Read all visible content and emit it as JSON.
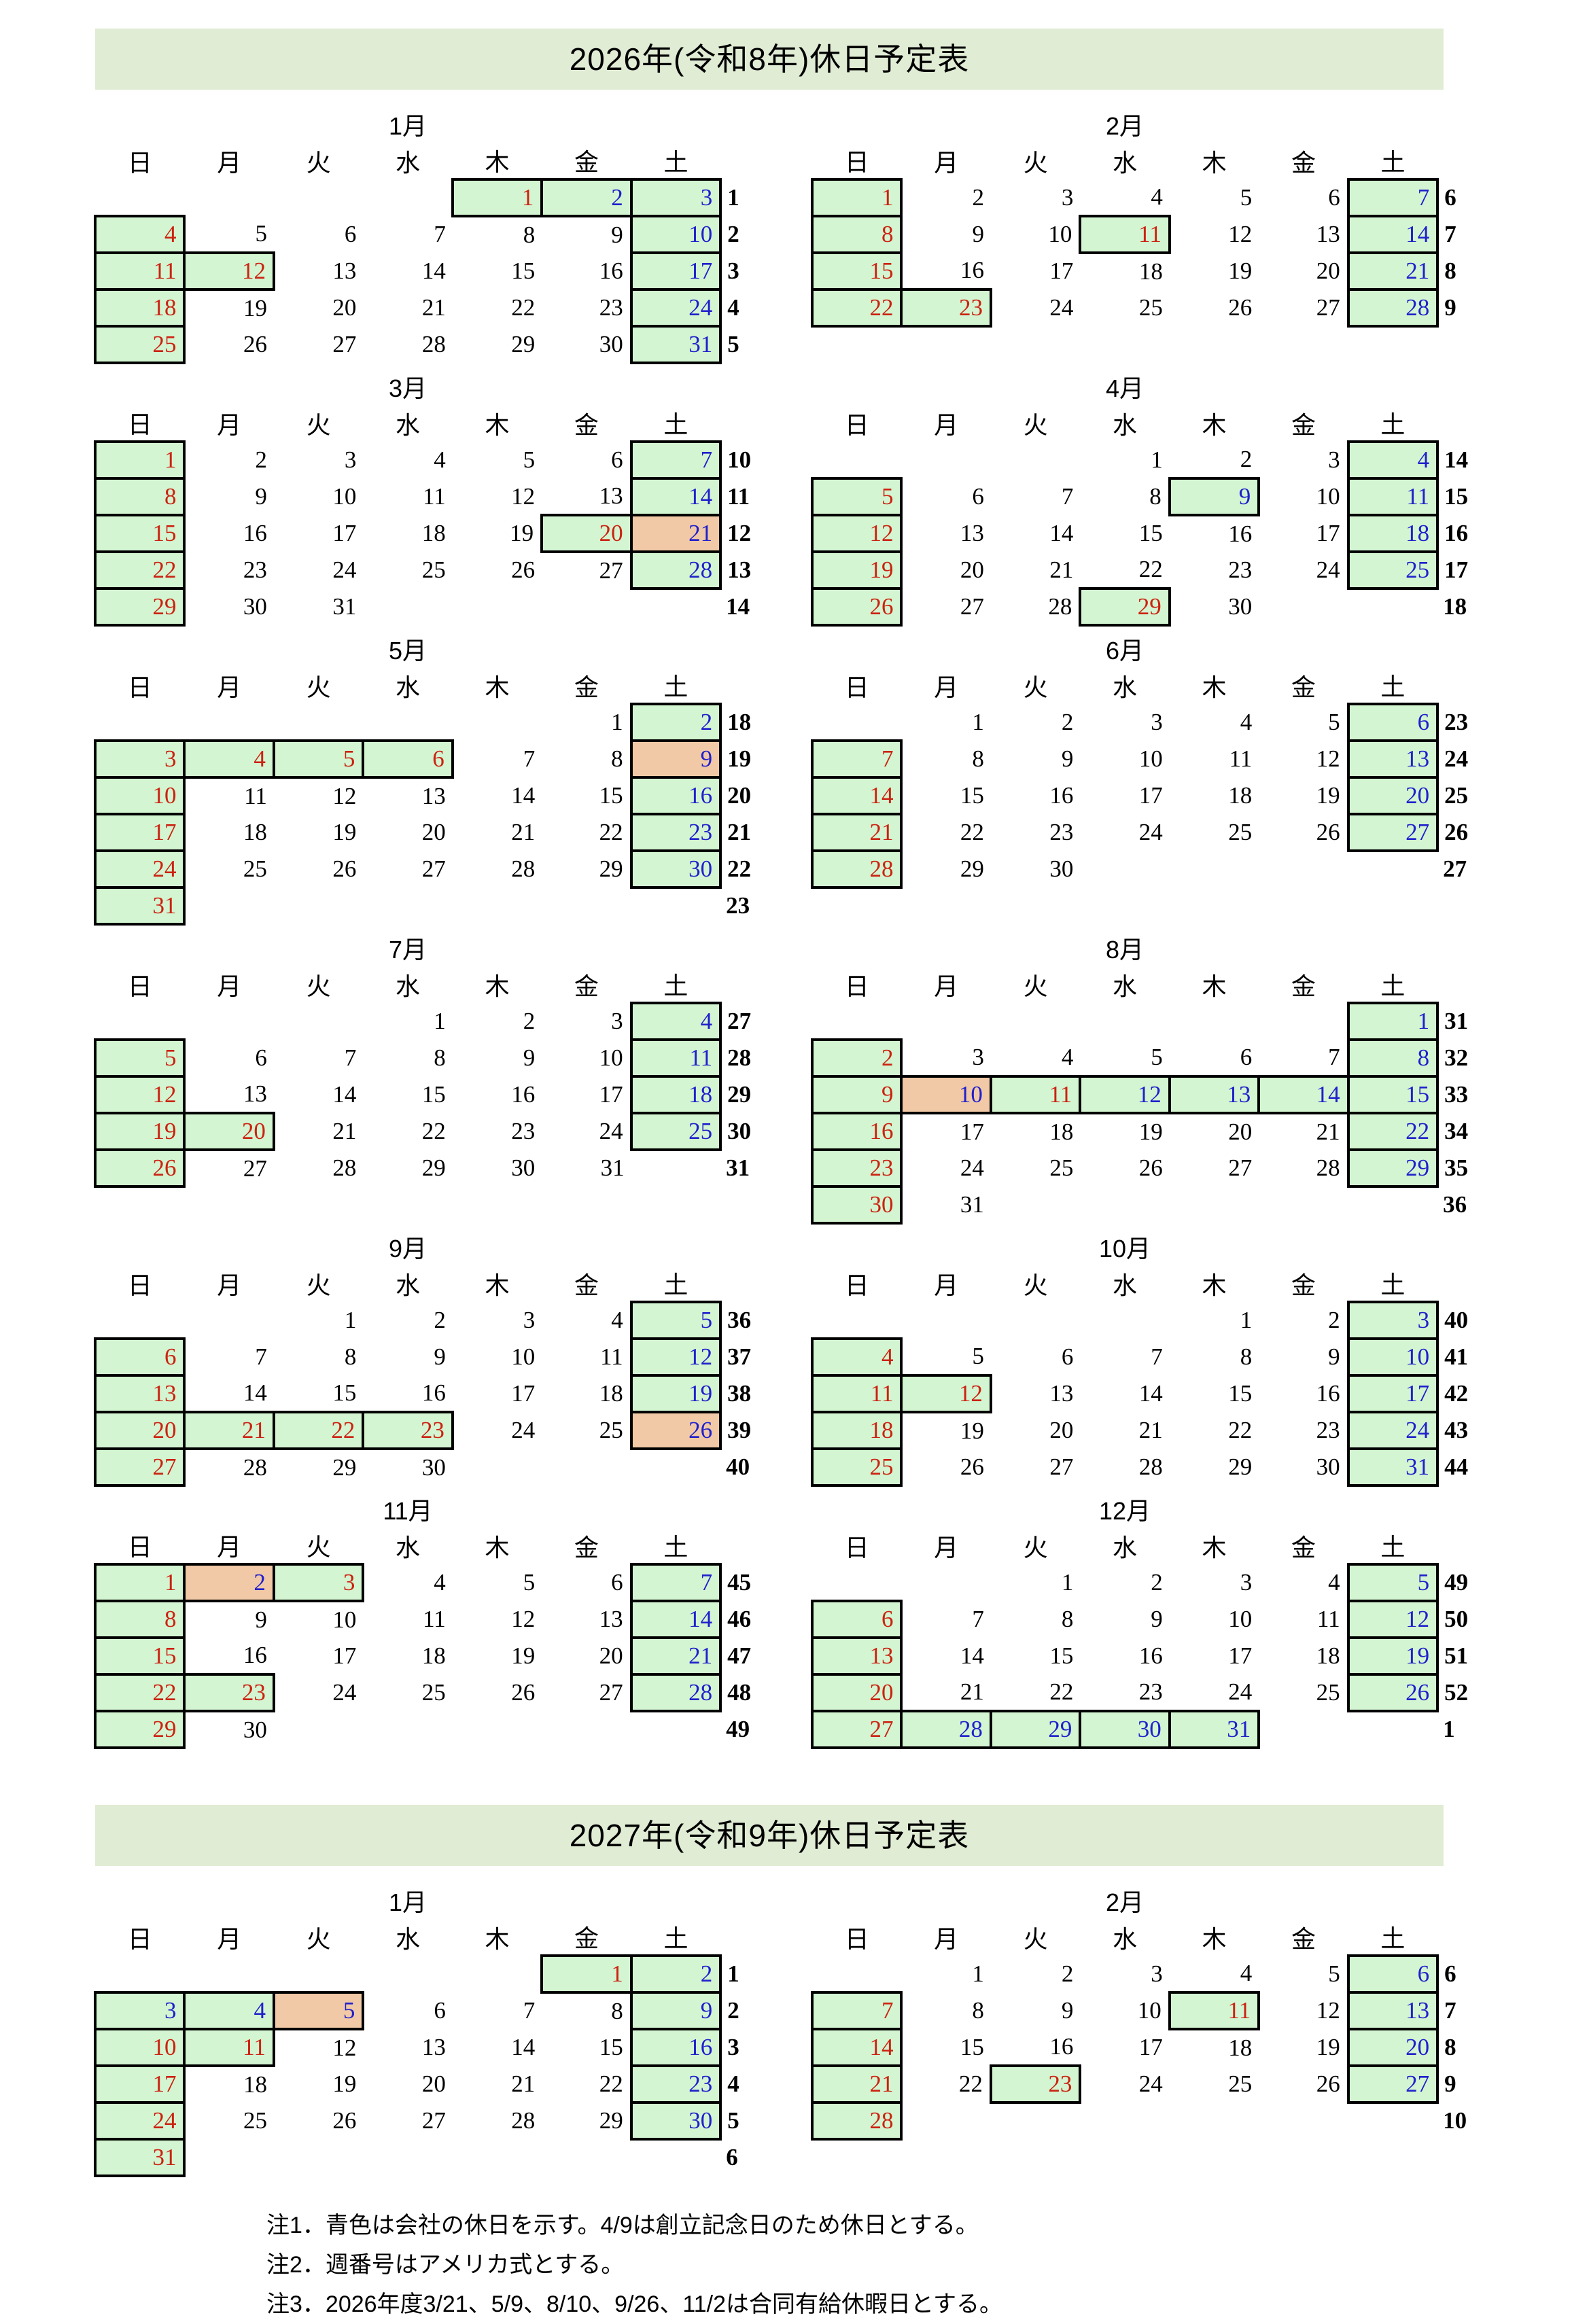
{
  "colors": {
    "holiday_green": "#d3f5d1",
    "joint_leave_orange": "#f1c9a6",
    "title_bar_green": "#e0ecd4",
    "sunday_holiday_red": "#cc2211",
    "company_holiday_blue": "#2020cc",
    "text_black": "#000000"
  },
  "cell_style_codes": {
    "rg": "red-text-on-green-holiday",
    "bg": "blue-text-on-green-company-holiday",
    "bo": "blue-text-on-orange-joint-paid-leave",
    "plain": "black-text-no-fill"
  },
  "day_headers": [
    "日",
    "月",
    "火",
    "水",
    "木",
    "金",
    "土"
  ],
  "sections": [
    {
      "title": "2026年(令和8年)休日予定表",
      "year": "2026",
      "months": [
        {
          "label": "1月",
          "weeks": [
            {
              "w": "1",
              "days": [
                "",
                "",
                "",
                "",
                "1:rg",
                "2:bg",
                "3:bg"
              ]
            },
            {
              "w": "2",
              "days": [
                "4:rg",
                "5",
                "6",
                "7",
                "8",
                "9",
                "10:bg"
              ]
            },
            {
              "w": "3",
              "days": [
                "11:rg",
                "12:rg",
                "13",
                "14",
                "15",
                "16",
                "17:bg"
              ]
            },
            {
              "w": "4",
              "days": [
                "18:rg",
                "19",
                "20",
                "21",
                "22",
                "23",
                "24:bg"
              ]
            },
            {
              "w": "5",
              "days": [
                "25:rg",
                "26",
                "27",
                "28",
                "29",
                "30",
                "31:bg"
              ]
            }
          ]
        },
        {
          "label": "2月",
          "weeks": [
            {
              "w": "6",
              "days": [
                "1:rg",
                "2",
                "3",
                "4",
                "5",
                "6",
                "7:bg"
              ]
            },
            {
              "w": "7",
              "days": [
                "8:rg",
                "9",
                "10",
                "11:rg",
                "12",
                "13",
                "14:bg"
              ]
            },
            {
              "w": "8",
              "days": [
                "15:rg",
                "16",
                "17",
                "18",
                "19",
                "20",
                "21:bg"
              ]
            },
            {
              "w": "9",
              "days": [
                "22:rg",
                "23:rg",
                "24",
                "25",
                "26",
                "27",
                "28:bg"
              ]
            }
          ]
        },
        {
          "label": "3月",
          "weeks": [
            {
              "w": "10",
              "days": [
                "1:rg",
                "2",
                "3",
                "4",
                "5",
                "6",
                "7:bg"
              ]
            },
            {
              "w": "11",
              "days": [
                "8:rg",
                "9",
                "10",
                "11",
                "12",
                "13",
                "14:bg"
              ]
            },
            {
              "w": "12",
              "days": [
                "15:rg",
                "16",
                "17",
                "18",
                "19",
                "20:rg",
                "21:bo"
              ]
            },
            {
              "w": "13",
              "days": [
                "22:rg",
                "23",
                "24",
                "25",
                "26",
                "27",
                "28:bg"
              ]
            },
            {
              "w": "14",
              "days": [
                "29:rg",
                "30",
                "31",
                "",
                "",
                "",
                ""
              ]
            }
          ]
        },
        {
          "label": "4月",
          "weeks": [
            {
              "w": "14",
              "days": [
                "",
                "",
                "",
                "1",
                "2",
                "3",
                "4:bg"
              ]
            },
            {
              "w": "15",
              "days": [
                "5:rg",
                "6",
                "7",
                "8",
                "9:bg",
                "10",
                "11:bg"
              ]
            },
            {
              "w": "16",
              "days": [
                "12:rg",
                "13",
                "14",
                "15",
                "16",
                "17",
                "18:bg"
              ]
            },
            {
              "w": "17",
              "days": [
                "19:rg",
                "20",
                "21",
                "22",
                "23",
                "24",
                "25:bg"
              ]
            },
            {
              "w": "18",
              "days": [
                "26:rg",
                "27",
                "28",
                "29:rg",
                "30",
                "",
                ""
              ]
            }
          ]
        },
        {
          "label": "5月",
          "weeks": [
            {
              "w": "18",
              "days": [
                "",
                "",
                "",
                "",
                "",
                "1",
                "2:bg"
              ]
            },
            {
              "w": "19",
              "days": [
                "3:rg",
                "4:rg",
                "5:rg",
                "6:rg",
                "7",
                "8",
                "9:bo"
              ]
            },
            {
              "w": "20",
              "days": [
                "10:rg",
                "11",
                "12",
                "13",
                "14",
                "15",
                "16:bg"
              ]
            },
            {
              "w": "21",
              "days": [
                "17:rg",
                "18",
                "19",
                "20",
                "21",
                "22",
                "23:bg"
              ]
            },
            {
              "w": "22",
              "days": [
                "24:rg",
                "25",
                "26",
                "27",
                "28",
                "29",
                "30:bg"
              ]
            },
            {
              "w": "23",
              "days": [
                "31:rg",
                "",
                "",
                "",
                "",
                "",
                ""
              ]
            }
          ]
        },
        {
          "label": "6月",
          "weeks": [
            {
              "w": "23",
              "days": [
                "",
                "1",
                "2",
                "3",
                "4",
                "5",
                "6:bg"
              ]
            },
            {
              "w": "24",
              "days": [
                "7:rg",
                "8",
                "9",
                "10",
                "11",
                "12",
                "13:bg"
              ]
            },
            {
              "w": "25",
              "days": [
                "14:rg",
                "15",
                "16",
                "17",
                "18",
                "19",
                "20:bg"
              ]
            },
            {
              "w": "26",
              "days": [
                "21:rg",
                "22",
                "23",
                "24",
                "25",
                "26",
                "27:bg"
              ]
            },
            {
              "w": "27",
              "days": [
                "28:rg",
                "29",
                "30",
                "",
                "",
                "",
                ""
              ]
            }
          ]
        },
        {
          "label": "7月",
          "weeks": [
            {
              "w": "27",
              "days": [
                "",
                "",
                "",
                "1",
                "2",
                "3",
                "4:bg"
              ]
            },
            {
              "w": "28",
              "days": [
                "5:rg",
                "6",
                "7",
                "8",
                "9",
                "10",
                "11:bg"
              ]
            },
            {
              "w": "29",
              "days": [
                "12:rg",
                "13",
                "14",
                "15",
                "16",
                "17",
                "18:bg"
              ]
            },
            {
              "w": "30",
              "days": [
                "19:rg",
                "20:rg",
                "21",
                "22",
                "23",
                "24",
                "25:bg"
              ]
            },
            {
              "w": "31",
              "days": [
                "26:rg",
                "27",
                "28",
                "29",
                "30",
                "31",
                ""
              ]
            }
          ]
        },
        {
          "label": "8月",
          "weeks": [
            {
              "w": "31",
              "days": [
                "",
                "",
                "",
                "",
                "",
                "",
                "1:bg"
              ]
            },
            {
              "w": "32",
              "days": [
                "2:rg",
                "3",
                "4",
                "5",
                "6",
                "7",
                "8:bg"
              ]
            },
            {
              "w": "33",
              "days": [
                "9:rg",
                "10:bo",
                "11:rg",
                "12:bg",
                "13:bg",
                "14:bg",
                "15:bg"
              ]
            },
            {
              "w": "34",
              "days": [
                "16:rg",
                "17",
                "18",
                "19",
                "20",
                "21",
                "22:bg"
              ]
            },
            {
              "w": "35",
              "days": [
                "23:rg",
                "24",
                "25",
                "26",
                "27",
                "28",
                "29:bg"
              ]
            },
            {
              "w": "36",
              "days": [
                "30:rg",
                "31",
                "",
                "",
                "",
                "",
                ""
              ]
            }
          ]
        },
        {
          "label": "9月",
          "weeks": [
            {
              "w": "36",
              "days": [
                "",
                "",
                "1",
                "2",
                "3",
                "4",
                "5:bg"
              ]
            },
            {
              "w": "37",
              "days": [
                "6:rg",
                "7",
                "8",
                "9",
                "10",
                "11",
                "12:bg"
              ]
            },
            {
              "w": "38",
              "days": [
                "13:rg",
                "14",
                "15",
                "16",
                "17",
                "18",
                "19:bg"
              ]
            },
            {
              "w": "39",
              "days": [
                "20:rg",
                "21:rg",
                "22:rg",
                "23:rg",
                "24",
                "25",
                "26:bo"
              ]
            },
            {
              "w": "40",
              "days": [
                "27:rg",
                "28",
                "29",
                "30",
                "",
                "",
                ""
              ]
            }
          ]
        },
        {
          "label": "10月",
          "weeks": [
            {
              "w": "40",
              "days": [
                "",
                "",
                "",
                "",
                "1",
                "2",
                "3:bg"
              ]
            },
            {
              "w": "41",
              "days": [
                "4:rg",
                "5",
                "6",
                "7",
                "8",
                "9",
                "10:bg"
              ]
            },
            {
              "w": "42",
              "days": [
                "11:rg",
                "12:rg",
                "13",
                "14",
                "15",
                "16",
                "17:bg"
              ]
            },
            {
              "w": "43",
              "days": [
                "18:rg",
                "19",
                "20",
                "21",
                "22",
                "23",
                "24:bg"
              ]
            },
            {
              "w": "44",
              "days": [
                "25:rg",
                "26",
                "27",
                "28",
                "29",
                "30",
                "31:bg"
              ]
            }
          ]
        },
        {
          "label": "11月",
          "weeks": [
            {
              "w": "45",
              "days": [
                "1:rg",
                "2:bo",
                "3:rg",
                "4",
                "5",
                "6",
                "7:bg"
              ]
            },
            {
              "w": "46",
              "days": [
                "8:rg",
                "9",
                "10",
                "11",
                "12",
                "13",
                "14:bg"
              ]
            },
            {
              "w": "47",
              "days": [
                "15:rg",
                "16",
                "17",
                "18",
                "19",
                "20",
                "21:bg"
              ]
            },
            {
              "w": "48",
              "days": [
                "22:rg",
                "23:rg",
                "24",
                "25",
                "26",
                "27",
                "28:bg"
              ]
            },
            {
              "w": "49",
              "days": [
                "29:rg",
                "30",
                "",
                "",
                "",
                "",
                ""
              ]
            }
          ]
        },
        {
          "label": "12月",
          "weeks": [
            {
              "w": "49",
              "days": [
                "",
                "",
                "1",
                "2",
                "3",
                "4",
                "5:bg"
              ]
            },
            {
              "w": "50",
              "days": [
                "6:rg",
                "7",
                "8",
                "9",
                "10",
                "11",
                "12:bg"
              ]
            },
            {
              "w": "51",
              "days": [
                "13:rg",
                "14",
                "15",
                "16",
                "17",
                "18",
                "19:bg"
              ]
            },
            {
              "w": "52",
              "days": [
                "20:rg",
                "21",
                "22",
                "23",
                "24",
                "25",
                "26:bg"
              ]
            },
            {
              "w": "1",
              "days": [
                "27:rg",
                "28:bg",
                "29:bg",
                "30:bg",
                "31:bg",
                "",
                ""
              ]
            }
          ]
        }
      ]
    },
    {
      "title": "2027年(令和9年)休日予定表",
      "year": "2027",
      "months": [
        {
          "label": "1月",
          "weeks": [
            {
              "w": "1",
              "days": [
                "",
                "",
                "",
                "",
                "",
                "1:rg",
                "2:bg"
              ]
            },
            {
              "w": "2",
              "days": [
                "3:bg",
                "4:bg",
                "5:bo",
                "6",
                "7",
                "8",
                "9:bg"
              ]
            },
            {
              "w": "3",
              "days": [
                "10:rg",
                "11:rg",
                "12",
                "13",
                "14",
                "15",
                "16:bg"
              ]
            },
            {
              "w": "4",
              "days": [
                "17:rg",
                "18",
                "19",
                "20",
                "21",
                "22",
                "23:bg"
              ]
            },
            {
              "w": "5",
              "days": [
                "24:rg",
                "25",
                "26",
                "27",
                "28",
                "29",
                "30:bg"
              ]
            },
            {
              "w": "6",
              "days": [
                "31:rg",
                "",
                "",
                "",
                "",
                "",
                ""
              ]
            }
          ]
        },
        {
          "label": "2月",
          "weeks": [
            {
              "w": "6",
              "days": [
                "",
                "1",
                "2",
                "3",
                "4",
                "5",
                "6:bg"
              ]
            },
            {
              "w": "7",
              "days": [
                "7:rg",
                "8",
                "9",
                "10",
                "11:rg",
                "12",
                "13:bg"
              ]
            },
            {
              "w": "8",
              "days": [
                "14:rg",
                "15",
                "16",
                "17",
                "18",
                "19",
                "20:bg"
              ]
            },
            {
              "w": "9",
              "days": [
                "21:rg",
                "22",
                "23:rg",
                "24",
                "25",
                "26",
                "27:bg"
              ]
            },
            {
              "w": "10",
              "days": [
                "28:rg",
                "",
                "",
                "",
                "",
                "",
                ""
              ]
            }
          ]
        }
      ]
    }
  ],
  "notes": [
    "注1．青色は会社の休日を示す。4/9は創立記念日のため休日とする。",
    "注2．週番号はアメリカ式とする。",
    "注3．2026年度3/21、5/9、8/10、9/26、11/2は合同有給休暇日とする。"
  ]
}
